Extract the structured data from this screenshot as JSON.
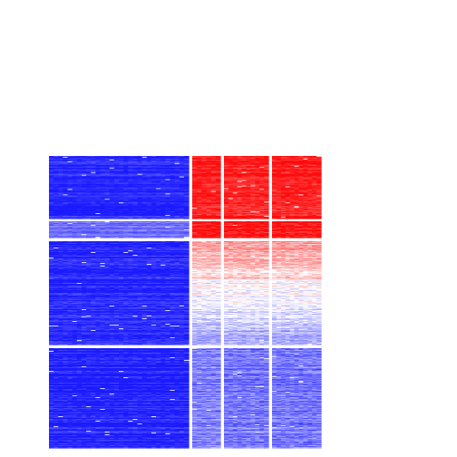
{
  "chart_data": {
    "type": "heatmap",
    "title": "",
    "xlabel": "",
    "ylabel": "",
    "color_scale": {
      "low": "#1a1aff",
      "mid": "#ffffff",
      "high": "#ff0a0a"
    },
    "value_range": [
      -1,
      1
    ],
    "column_groups": [
      {
        "columns": 30
      },
      {
        "columns": 6
      },
      {
        "columns": 10
      },
      {
        "columns": 11
      }
    ],
    "row_groups": [
      {
        "rows": 70,
        "profile": [
          -0.95,
          0.92,
          0.9,
          0.92
        ]
      },
      {
        "rows": 18,
        "profile": [
          -0.6,
          1.0,
          1.0,
          1.0
        ]
      },
      {
        "rows": 114,
        "profile": [
          -0.95,
          0.45,
          0.55,
          0.5
        ]
      },
      {
        "rows": 110,
        "profile": [
          -0.97,
          -0.55,
          -0.6,
          -0.6
        ]
      }
    ],
    "gradient_groups": [
      2
    ],
    "gradient_range": [
      0.45,
      -0.45
    ]
  }
}
